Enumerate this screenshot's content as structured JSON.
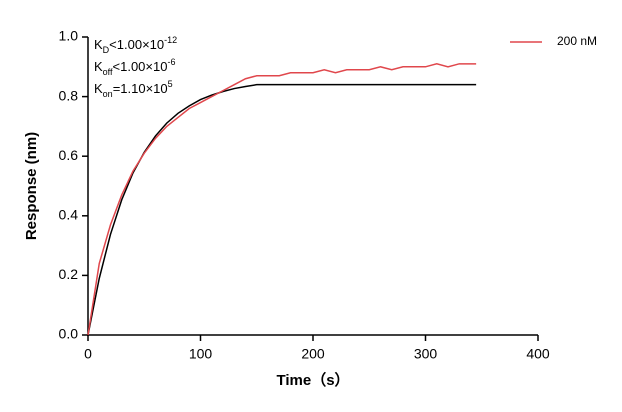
{
  "chart_data": {
    "type": "line",
    "xlabel": "Time（s）",
    "ylabel": "Response (nm)",
    "annotations": [
      {
        "symbol": "K",
        "subscript": "D",
        "relation": "<",
        "mantissa": "1.00×10",
        "exponent": "-12"
      },
      {
        "symbol": "K",
        "subscript": "off",
        "relation": "<",
        "mantissa": "1.00×10",
        "exponent": "-6"
      },
      {
        "symbol": "K",
        "subscript": "on",
        "relation": "=",
        "mantissa": "1.10×10",
        "exponent": "5"
      }
    ],
    "x": [
      0,
      10,
      20,
      30,
      40,
      50,
      60,
      70,
      80,
      90,
      100,
      110,
      120,
      130,
      140,
      150,
      160,
      170,
      180,
      190,
      200,
      210,
      220,
      230,
      240,
      250,
      260,
      270,
      280,
      290,
      300,
      310,
      320,
      330,
      340,
      345
    ],
    "series": [
      {
        "name": "200 nM",
        "color": "#e0474c",
        "values": [
          0,
          0.24,
          0.37,
          0.47,
          0.55,
          0.61,
          0.66,
          0.7,
          0.73,
          0.76,
          0.78,
          0.8,
          0.82,
          0.84,
          0.86,
          0.87,
          0.87,
          0.87,
          0.88,
          0.88,
          0.88,
          0.89,
          0.88,
          0.89,
          0.89,
          0.89,
          0.9,
          0.89,
          0.9,
          0.9,
          0.9,
          0.91,
          0.9,
          0.91,
          0.91,
          0.91
        ]
      },
      {
        "color": "#000000",
        "values": [
          0,
          0.19,
          0.338,
          0.454,
          0.544,
          0.613,
          0.668,
          0.711,
          0.744,
          0.769,
          0.79,
          0.805,
          0.817,
          0.827,
          0.834,
          0.84,
          0.84,
          0.84,
          0.84,
          0.84,
          0.84,
          0.84,
          0.84,
          0.84,
          0.84,
          0.84,
          0.84,
          0.84,
          0.84,
          0.84,
          0.84,
          0.84,
          0.84,
          0.84,
          0.84,
          0.84
        ]
      }
    ],
    "xlim": [
      0,
      400
    ],
    "xticks": [
      0,
      100,
      200,
      300,
      400
    ],
    "ylim": [
      0,
      1.0
    ],
    "yticks": [
      {
        "value": 0,
        "label": "0.0"
      },
      {
        "value": 0.2,
        "label": "0.2"
      },
      {
        "value": 0.4,
        "label": "0.4"
      },
      {
        "value": 0.6,
        "label": "0.6"
      },
      {
        "value": 0.8,
        "label": "0.8"
      },
      {
        "value": 1.0,
        "label": "1.0"
      }
    ],
    "grid": false,
    "legend": "top-right"
  }
}
